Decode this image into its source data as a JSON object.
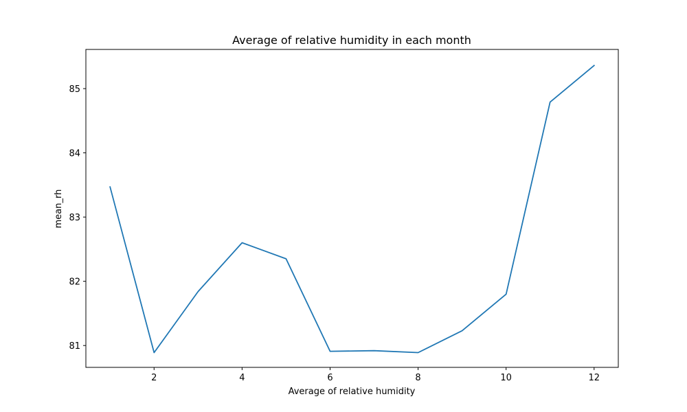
{
  "chart_data": {
    "type": "line",
    "title": "Average of relative humidity in each month",
    "xlabel": "Average of relative humidity",
    "ylabel": "mean_rh",
    "xlim": [
      0.45,
      12.55
    ],
    "ylim": [
      80.66,
      85.61
    ],
    "x_ticks": [
      2,
      4,
      6,
      8,
      10,
      12
    ],
    "y_ticks": [
      81,
      82,
      83,
      84,
      85
    ],
    "grid": false,
    "legend": "none",
    "series": [
      {
        "color": "#1f77b4",
        "x": [
          1,
          2,
          3,
          4,
          5,
          6,
          7,
          8,
          9,
          10,
          11,
          12
        ],
        "y": [
          83.47,
          80.89,
          81.84,
          82.6,
          82.35,
          80.91,
          80.92,
          80.89,
          81.23,
          81.8,
          84.79,
          85.36
        ]
      }
    ]
  }
}
